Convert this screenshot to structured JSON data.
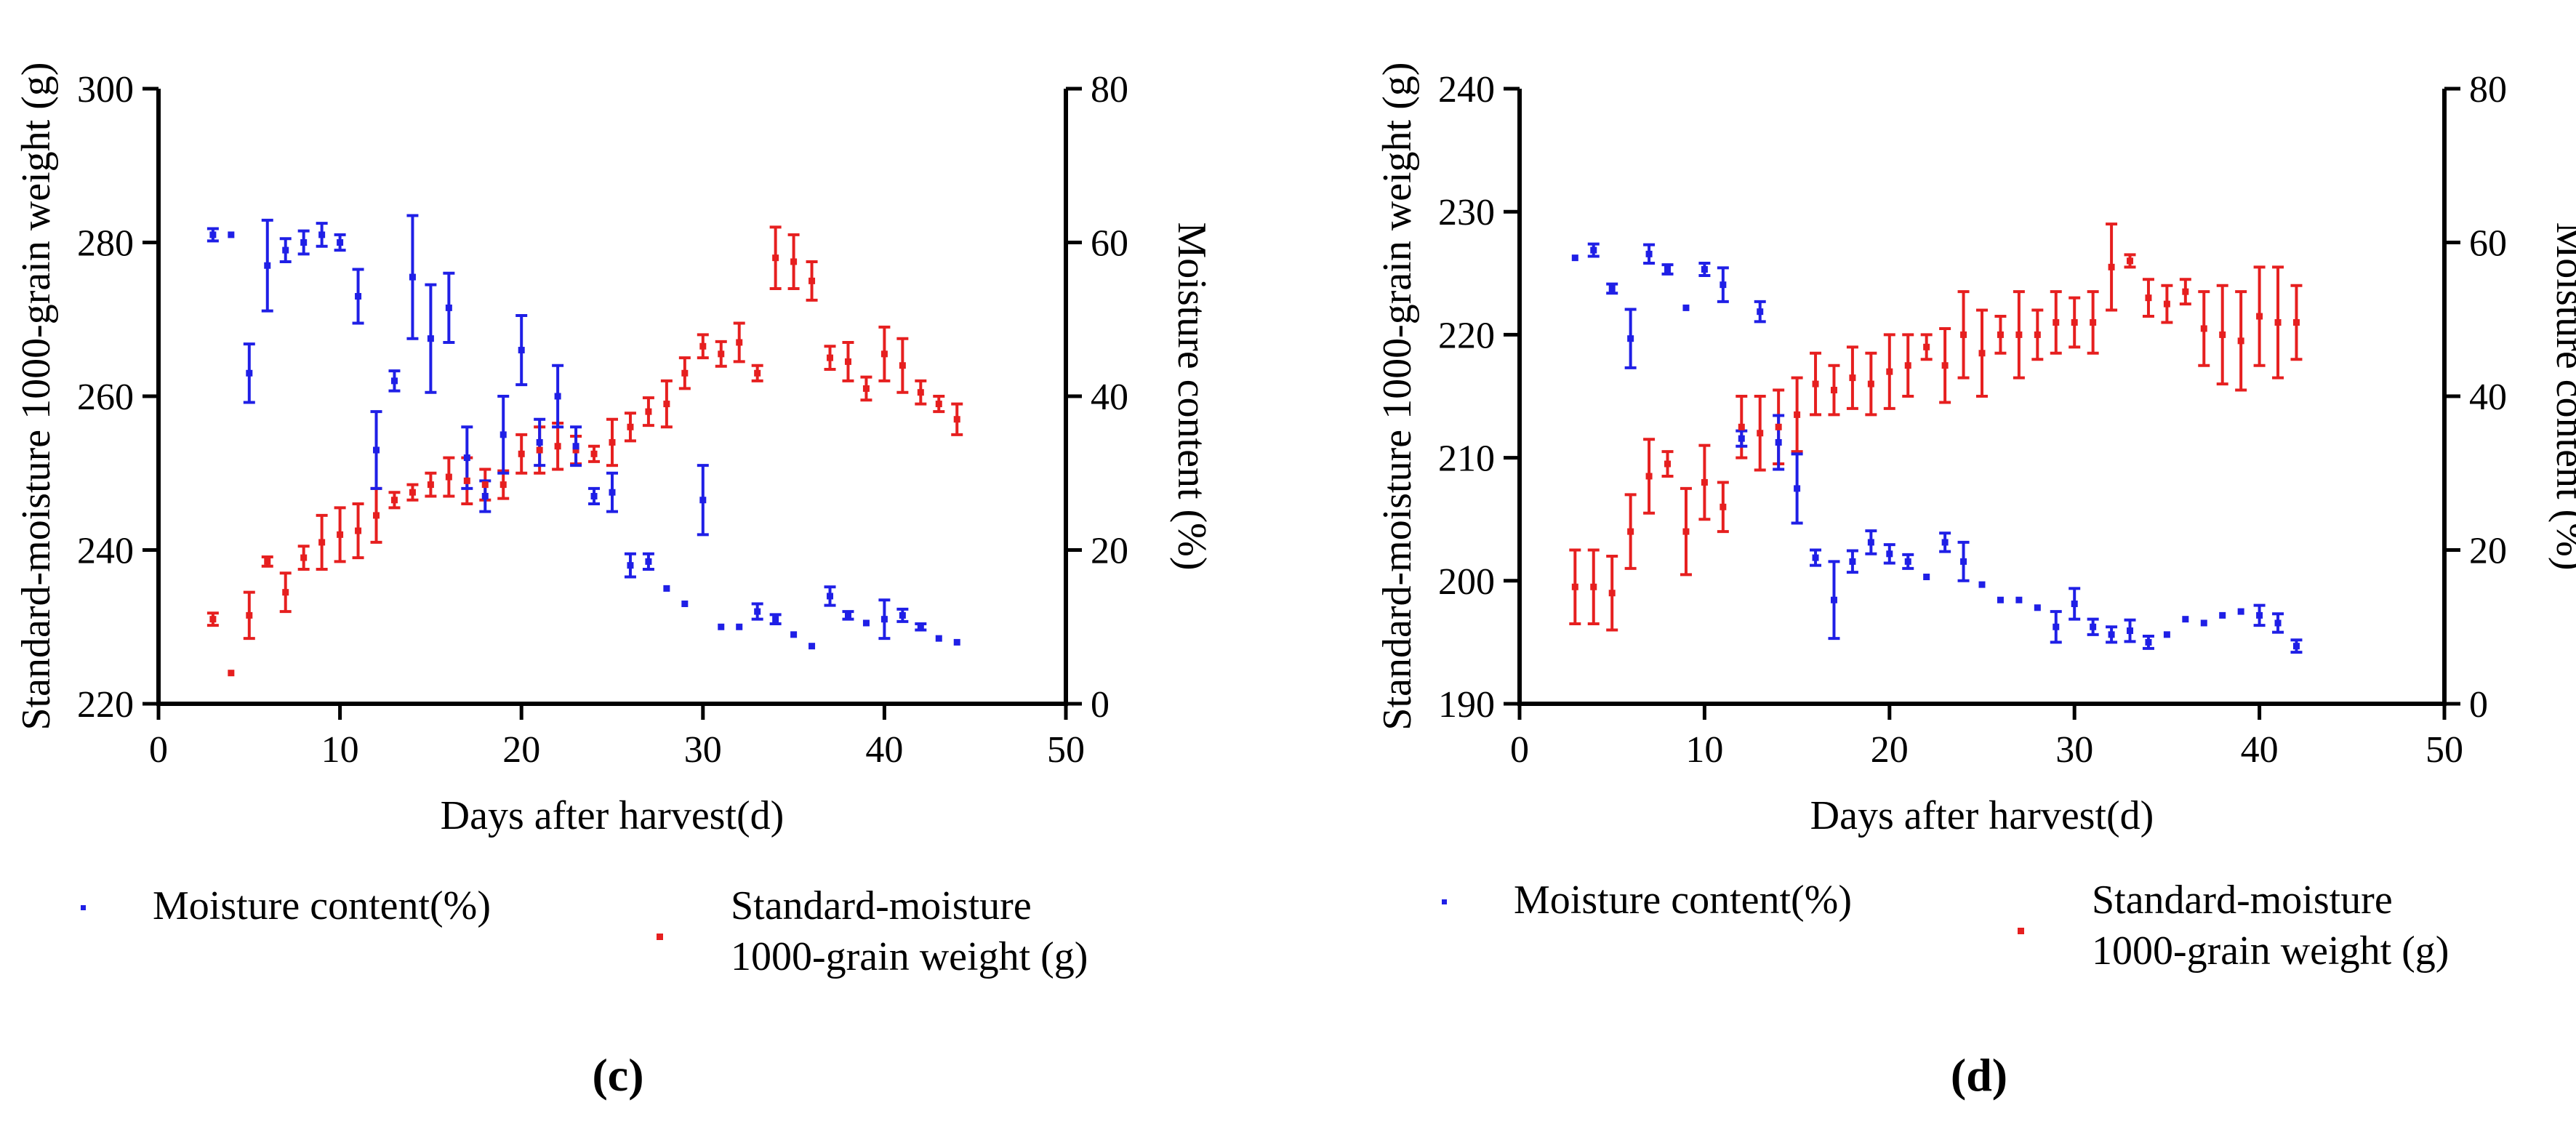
{
  "colors": {
    "moisture": "#1f1fe6",
    "weight": "#e61f1f",
    "axis": "#000000"
  },
  "chart_data": [
    {
      "type": "scatter",
      "panel_label": "(c)",
      "title": "",
      "xlabel": "Days after harvest(d)",
      "ylabel_left": "Standard-moisture 1000-grain weight (g)",
      "ylabel_right": "Moisture content (%)",
      "xlim": [
        0,
        50
      ],
      "xticks": [
        "0",
        "10",
        "20",
        "30",
        "40",
        "50"
      ],
      "ylim_left": [
        220,
        300
      ],
      "yticks_left": [
        "220",
        "240",
        "260",
        "280",
        "300"
      ],
      "ylim_right": [
        0,
        80
      ],
      "yticks_right": [
        "0",
        "20",
        "40",
        "60",
        "80"
      ],
      "legend": {
        "position": "bottom",
        "moisture_label": "Moisture content(%)",
        "weight_label_line1": "Standard-moisture",
        "weight_label_line2": "1000-grain weight (g)"
      },
      "series": [
        {
          "name": "Moisture content(%)",
          "axis": "right",
          "x": [
            3,
            4,
            5,
            6,
            7,
            8,
            9,
            10,
            11,
            12,
            13,
            14,
            15,
            16,
            17,
            18,
            19,
            20,
            21,
            22,
            23,
            24,
            25,
            26,
            27,
            28,
            29,
            30,
            31,
            32,
            33,
            34,
            35,
            36,
            37,
            38,
            39,
            40,
            41,
            42,
            43,
            44
          ],
          "y": [
            61,
            61,
            43,
            57,
            59,
            60,
            61,
            60,
            53,
            33,
            42,
            55.5,
            47.5,
            51.5,
            32,
            27,
            35,
            46,
            34,
            40,
            33.5,
            27,
            27.5,
            18,
            18.5,
            15,
            13,
            26.5,
            10,
            10,
            12,
            11,
            9,
            7.5,
            14,
            11.5,
            10.5,
            11,
            11.5,
            10,
            8.5,
            8
          ],
          "err": [
            0.8,
            0,
            3.8,
            5.9,
            1.5,
            1.5,
            1.5,
            1,
            3.5,
            5,
            1.3,
            8,
            7,
            4.5,
            4,
            2,
            5,
            4.5,
            3,
            4,
            2.5,
            1,
            2.5,
            1.5,
            1,
            0,
            0,
            4.5,
            0,
            0,
            1,
            0.6,
            0,
            0,
            1.2,
            0.5,
            0,
            2.5,
            0.8,
            0.4,
            0,
            0
          ]
        },
        {
          "name": "Standard-moisture 1000-grain weight (g)",
          "axis": "left",
          "x": [
            3,
            4,
            5,
            6,
            7,
            8,
            9,
            10,
            11,
            12,
            13,
            14,
            15,
            16,
            17,
            18,
            19,
            20,
            21,
            22,
            23,
            24,
            25,
            26,
            27,
            28,
            29,
            30,
            31,
            32,
            33,
            34,
            35,
            36,
            37,
            38,
            39,
            40,
            41,
            42,
            43,
            44
          ],
          "y": [
            231,
            224,
            231.5,
            238.5,
            234.5,
            239,
            241,
            242,
            242.5,
            244.5,
            246.5,
            247.5,
            248.5,
            249.5,
            249,
            248.5,
            248.5,
            252.5,
            253,
            253.5,
            253,
            252.5,
            254,
            256,
            258,
            259,
            263,
            266.5,
            265.5,
            267,
            263,
            278,
            277.5,
            275,
            265,
            264.5,
            261,
            265.5,
            264,
            260.5,
            259,
            257
          ],
          "err": [
            0.8,
            0,
            3,
            0.6,
            2.5,
            1.5,
            3.5,
            3.5,
            3.5,
            3.5,
            1,
            1,
            1.5,
            2.5,
            3,
            2,
            1.8,
            2.5,
            3,
            3,
            1.8,
            1,
            3,
            1.8,
            1.8,
            3,
            2,
            1.5,
            1.6,
            2.5,
            1,
            4,
            3.5,
            2.5,
            1.5,
            2.5,
            1.5,
            3.5,
            3.5,
            1.5,
            1,
            2
          ]
        }
      ]
    },
    {
      "type": "scatter",
      "panel_label": "(d)",
      "title": "",
      "xlabel": "Days after harvest(d)",
      "ylabel_left": "Standard-moisture 1000-grain weight (g)",
      "ylabel_right": "Moisture content (%)",
      "xlim": [
        0,
        50
      ],
      "xticks": [
        "0",
        "10",
        "20",
        "30",
        "40",
        "50"
      ],
      "ylim_left": [
        190,
        240
      ],
      "yticks_left": [
        "190",
        "200",
        "210",
        "220",
        "230",
        "240"
      ],
      "ylim_right": [
        0,
        80
      ],
      "yticks_right": [
        "0",
        "20",
        "40",
        "60",
        "80"
      ],
      "legend": {
        "position": "bottom",
        "moisture_label": "Moisture content(%)",
        "weight_label_line1": "Standard-moisture",
        "weight_label_line2": "1000-grain weight (g)"
      },
      "series": [
        {
          "name": "Moisture content(%)",
          "axis": "right",
          "x": [
            3,
            4,
            5,
            6,
            7,
            8,
            9,
            10,
            11,
            12,
            13,
            14,
            15,
            16,
            17,
            18,
            19,
            20,
            21,
            22,
            23,
            24,
            25,
            26,
            27,
            28,
            29,
            30,
            31,
            32,
            33,
            34,
            35,
            36,
            37,
            38,
            39,
            40,
            41,
            42
          ],
          "y": [
            58,
            59,
            54,
            47.5,
            58.5,
            56.5,
            51.5,
            56.5,
            54.5,
            34.5,
            51,
            34,
            28,
            19,
            13.5,
            18.5,
            21,
            19.5,
            18.5,
            16.5,
            21,
            18.5,
            15.5,
            13.5,
            13.5,
            12.5,
            10,
            13,
            10,
            9,
            9.5,
            8,
            9,
            11,
            10.5,
            11.5,
            12,
            11.5,
            10.5,
            7.5
          ],
          "err": [
            0,
            0.8,
            0.6,
            3.8,
            1.2,
            0.6,
            0,
            0.8,
            2.2,
            1,
            1.3,
            3.5,
            4.5,
            1,
            5,
            1.4,
            1.5,
            1.2,
            0.9,
            0,
            1.2,
            2.5,
            0,
            0,
            0,
            0,
            2,
            2,
            1,
            1,
            1.4,
            0.8,
            0,
            0,
            0,
            0,
            0,
            1.3,
            1.2,
            0.8
          ]
        },
        {
          "name": "Standard-moisture 1000-grain weight (g)",
          "axis": "left",
          "x": [
            3,
            4,
            5,
            6,
            7,
            8,
            9,
            10,
            11,
            12,
            13,
            14,
            15,
            16,
            17,
            18,
            19,
            20,
            21,
            22,
            23,
            24,
            25,
            26,
            27,
            28,
            29,
            30,
            31,
            32,
            33,
            34,
            35,
            36,
            37,
            38,
            39,
            40,
            41,
            42
          ],
          "y": [
            199.5,
            199.5,
            199,
            204,
            208.5,
            209.5,
            204,
            208,
            206,
            212.5,
            212,
            212.5,
            213.5,
            216,
            215.5,
            216.5,
            216,
            217,
            217.5,
            219,
            217.5,
            220,
            218.5,
            220,
            220,
            220,
            221,
            221,
            221,
            225.5,
            226,
            223,
            222.5,
            223.5,
            220.5,
            220,
            219.5,
            221.5,
            221,
            221
          ],
          "err": [
            3,
            3,
            3,
            3,
            3,
            1,
            3.5,
            3,
            2,
            2.5,
            3,
            3,
            3,
            2.5,
            2,
            2.5,
            2.5,
            3,
            2.5,
            1,
            3,
            3.5,
            3.5,
            1.5,
            3.5,
            2,
            2.5,
            2,
            2.5,
            3.5,
            0.5,
            1.5,
            1.5,
            1,
            3,
            4,
            4,
            4,
            4.5,
            3
          ]
        }
      ]
    }
  ]
}
